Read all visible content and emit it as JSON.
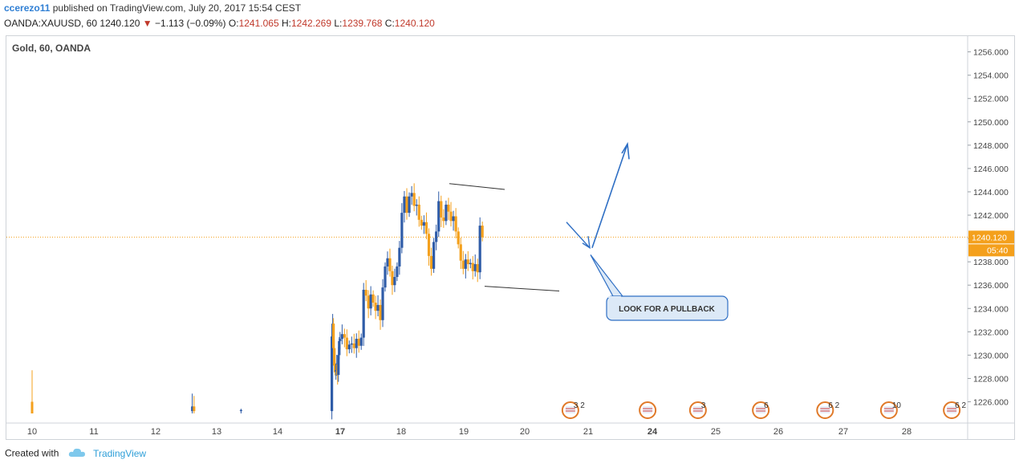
{
  "header": {
    "author": "ccerezo11",
    "published_text": "published on TradingView.com, July 20, 2017 15:54 CEST",
    "symbol": "OANDA:XAUUSD, 60",
    "last": "1240.120",
    "change_arrow": "▼",
    "change": "−1.113 (−0.09%)",
    "o_label": "O:",
    "o_value": "1241.065",
    "h_label": "H:",
    "h_value": "1242.269",
    "l_label": "L:",
    "l_value": "1239.768",
    "c_label": "C:",
    "c_value": "1240.120"
  },
  "footer": {
    "created_with": "Created with",
    "brand": "TradingView",
    "brand_icon": "tradingview-cloud-icon"
  },
  "colors": {
    "bull": "#2f5ca8",
    "bear": "#f4a01c",
    "price_line": "#f4a01c",
    "annotation": "#2f6fc4",
    "event_badge": "#e07a2a"
  },
  "chart_data": {
    "type": "candlestick",
    "title": "Gold, 60, OANDA",
    "ylim": [
      1225,
      1257
    ],
    "y_ticks": [
      "1226.000",
      "1228.000",
      "1230.000",
      "1232.000",
      "1234.000",
      "1236.000",
      "1238.000",
      "1240.000",
      "1242.000",
      "1244.000",
      "1246.000",
      "1248.000",
      "1250.000",
      "1252.000",
      "1254.000",
      "1256.000"
    ],
    "x_ticks": [
      "10",
      "11",
      "12",
      "13",
      "14",
      "17",
      "18",
      "19",
      "20",
      "21",
      "24",
      "25",
      "26",
      "27",
      "28"
    ],
    "current_price": "1240.120",
    "countdown": "05:40",
    "candles_pre_gap": [
      {
        "day": 10.0,
        "o": 1226.0,
        "h": 1228.7,
        "l": 1225.0,
        "c": 1225.0
      },
      {
        "day": 12.6,
        "o": 1225.2,
        "h": 1226.7,
        "l": 1225.0,
        "c": 1225.6
      },
      {
        "day": 12.63,
        "o": 1225.6,
        "h": 1226.5,
        "l": 1225.0,
        "c": 1225.2
      },
      {
        "day": 13.4,
        "o": 1225.2,
        "h": 1225.4,
        "l": 1225.0,
        "c": 1225.3
      }
    ],
    "candles": [
      1225.2,
      1231.6,
      1232.7,
      1230.6,
      1229.1,
      1228.6,
      1228.7,
      1229.2,
      1228.3,
      1230.0,
      1231.2,
      1231.4,
      1231.8,
      1231.5,
      1230.5,
      1230.9,
      1231.0,
      1230.6,
      1231.4,
      1230.8,
      1231.5,
      1235.6,
      1235.1,
      1234.0,
      1235.2,
      1234.5,
      1233.8,
      1234.3,
      1233.0,
      1235.8,
      1237.6,
      1238.3,
      1237.2,
      1236.0,
      1236.7,
      1237.6,
      1239.2,
      1242.2,
      1243.6,
      1242.2,
      1243.6,
      1243.9,
      1242.8,
      1242.9,
      1241.6,
      1241.1,
      1241.4,
      1240.4,
      1238.5,
      1237.4,
      1239.7,
      1240.6,
      1243.2,
      1241.8,
      1241.5,
      1242.9,
      1242.3,
      1241.5,
      1241.9,
      1240.6,
      1239.5,
      1238.1,
      1237.4,
      1238.2,
      1237.8,
      1237.9,
      1237.2,
      1237.8,
      1237.1,
      1241.1,
      1240.1
    ],
    "candles_start_day": 16.6,
    "candles_step_day": 0.0392,
    "events": [
      {
        "day": 20.72,
        "count": "3 2"
      },
      {
        "day": 23.78,
        "count": ""
      },
      {
        "day": 24.72,
        "count": "3"
      },
      {
        "day": 25.72,
        "count": "6"
      },
      {
        "day": 26.72,
        "count": "6 2"
      },
      {
        "day": 27.72,
        "count": "10"
      },
      {
        "day": 28.72,
        "count": "6 2"
      }
    ],
    "annotations": {
      "callout": "LOOK FOR A PULLBACK"
    }
  }
}
